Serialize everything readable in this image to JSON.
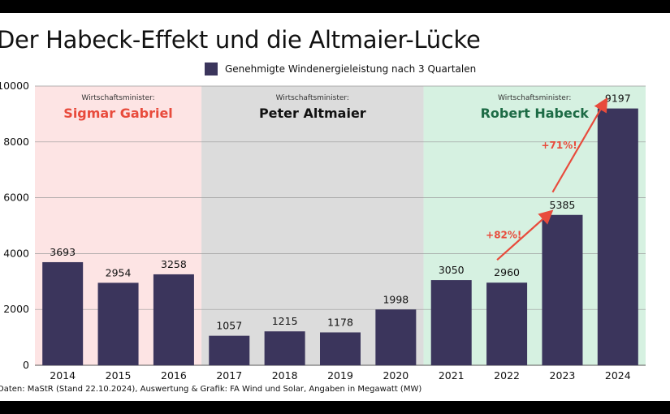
{
  "title": "Der Habeck-Effekt und die Altmaier-Lücke",
  "source": "Daten: MaStR (Stand 22.10.2024), Auswertung & Grafik: FA Wind und Solar, Angaben in Megawatt (MW)",
  "colors": {
    "bar": "#3b355c",
    "gabriel_bg": "#fde4e4",
    "altmaier_bg": "#dcdcdc",
    "habeck_bg": "#d6f1e1",
    "gabriel_name": "#e84b3c",
    "altmaier_name": "#111111",
    "habeck_name": "#1d6b45",
    "arrow": "#e84b3c"
  },
  "eras": [
    {
      "role": "Wirtschaftsminister:",
      "name": "Sigmar Gabriel",
      "from": "2014",
      "to": "2016",
      "bg": "gabriel_bg",
      "color": "gabriel_name"
    },
    {
      "role": "Wirtschaftsminister:",
      "name": "Peter Altmaier",
      "from": "2017",
      "to": "2020",
      "bg": "altmaier_bg",
      "color": "altmaier_name"
    },
    {
      "role": "Wirtschaftsminister:",
      "name": "Robert Habeck",
      "from": "2021",
      "to": "2024",
      "bg": "habeck_bg",
      "color": "habeck_name"
    }
  ],
  "chart_data": {
    "type": "bar",
    "categories": [
      "2014",
      "2015",
      "2016",
      "2017",
      "2018",
      "2019",
      "2020",
      "2021",
      "2022",
      "2023",
      "2024"
    ],
    "series": [
      {
        "name": "Genehmigte Windenergieleistung nach 3 Quartalen",
        "values": [
          3693,
          2954,
          3258,
          1057,
          1215,
          1178,
          1998,
          3050,
          2960,
          5385,
          9197
        ]
      }
    ],
    "ylim": [
      0,
      10000
    ],
    "yticks": [
      0,
      2000,
      4000,
      6000,
      8000,
      10000
    ],
    "ytick_labels": [
      "0",
      "2000",
      "4000",
      "6000",
      "8000",
      "10000"
    ],
    "grid": true,
    "legend": "top-center",
    "annotations": [
      {
        "text": "+82%!",
        "from": "2022",
        "to": "2023"
      },
      {
        "text": "+71%!",
        "from": "2023",
        "to": "2024"
      }
    ]
  }
}
